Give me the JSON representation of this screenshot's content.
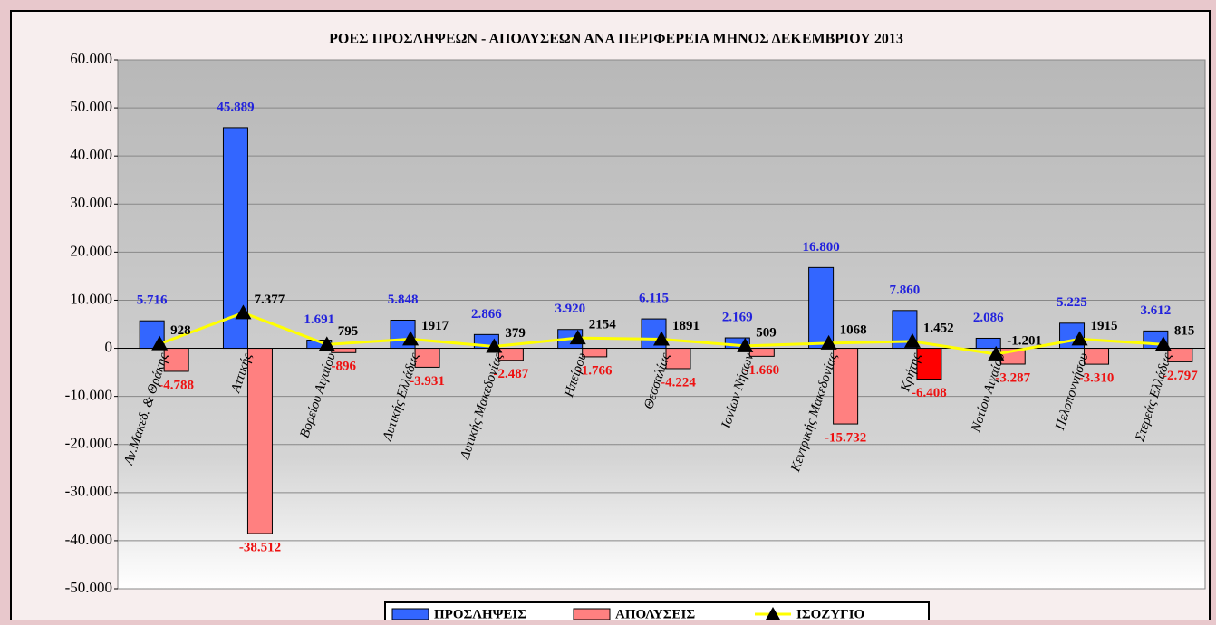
{
  "chart_data": {
    "type": "bar_line",
    "title": "ΡΟΕΣ ΠΡΟΣΛΗΨΕΩΝ - ΑΠΟΛΥΣΕΩΝ ΑΝΑ ΠΕΡΙΦΕΡΕΙΑ ΜΗΝΟΣ  ΔΕΚΕΜΒΡΙΟΥ 2013",
    "categories": [
      "Αν.Μακεδ. & Θράκης",
      "Αττικής",
      "Βορείου Αιγαίου",
      "Δυτικής Ελλάδας",
      "Δυτικής Μακεδονίας",
      "Ηπείρου",
      "Θεσσαλίας",
      "Ιονίων Νήσων",
      "Κεντρικής Μακεδονίας",
      "Κρήτης",
      "Νοτίου Αιγαίου",
      "Πελοποννήσου",
      "Στερεάς Ελλάδας"
    ],
    "series": [
      {
        "name": "ΠΡΟΣΛΗΨΕΙΣ",
        "type": "bar",
        "color": "#3366ff",
        "label_color": "#2222dd",
        "values": [
          5716,
          45889,
          1691,
          5848,
          2866,
          3920,
          6115,
          2169,
          16800,
          7860,
          2086,
          5225,
          3612
        ],
        "value_labels": [
          "5.716",
          "45.889",
          "1.691",
          "5.848",
          "2.866",
          "3.920",
          "6.115",
          "2.169",
          "16.800",
          "7.860",
          "2.086",
          "5.225",
          "3.612"
        ]
      },
      {
        "name": "ΑΠΟΛΥΣΕΙΣ",
        "type": "bar",
        "color": "#ff8080",
        "label_color": "#ee1111",
        "colors": [
          "#ff8080",
          "#ff8080",
          "#ff8080",
          "#ff8080",
          "#ff8080",
          "#ff8080",
          "#ff8080",
          "#ff8080",
          "#ff8080",
          "#ff0000",
          "#ff8080",
          "#ff8080",
          "#ff8080"
        ],
        "values": [
          -4788,
          -38512,
          -896,
          -3931,
          -2487,
          -1766,
          -4224,
          -1660,
          -15732,
          -6408,
          -3287,
          -3310,
          -2797
        ],
        "value_labels": [
          "-4.788",
          "-38.512",
          "-896",
          "-3.931",
          "-2.487",
          "-1.766",
          "-4.224",
          "-1.660",
          "-15.732",
          "-6.408",
          "-3.287",
          "-3.310",
          "-2.797"
        ]
      },
      {
        "name": "ΙΣΟΖΥΓΙΟ",
        "type": "line",
        "color": "#ffff00",
        "label_color": "#000000",
        "values": [
          928,
          7377,
          795,
          1917,
          379,
          2154,
          1891,
          509,
          1068,
          1452,
          -1201,
          1915,
          815
        ],
        "value_labels": [
          "928",
          "7.377",
          "795",
          "1917",
          "379",
          "2154",
          "1891",
          "509",
          "1068",
          "1.452",
          "-1.201",
          "1915",
          "815"
        ]
      }
    ],
    "ylim": [
      -50000,
      60000
    ],
    "yticks": [
      {
        "value": -50000,
        "label": "-50.000"
      },
      {
        "value": -40000,
        "label": "-40.000"
      },
      {
        "value": -30000,
        "label": "-30.000"
      },
      {
        "value": -20000,
        "label": "-20.000"
      },
      {
        "value": -10000,
        "label": "-10.000"
      },
      0,
      {
        "value": 10000,
        "label": "10.000"
      },
      {
        "value": 20000,
        "label": "20.000"
      },
      {
        "value": 30000,
        "label": "30.000"
      },
      {
        "value": 40000,
        "label": "40.000"
      },
      {
        "value": 50000,
        "label": "50.000"
      },
      {
        "value": 60000,
        "label": "60.000"
      }
    ],
    "grid": true,
    "legend": "bottom"
  }
}
